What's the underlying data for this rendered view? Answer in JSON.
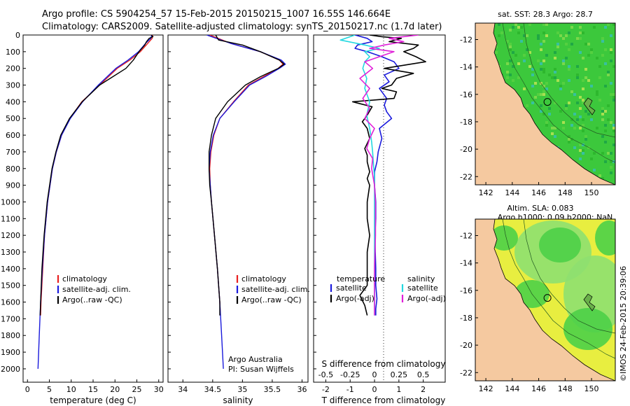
{
  "header": {
    "line1": "Argo profile: CS 5904254_57 15-Feb-2015 20150215_1007 16.55S 146.664E",
    "line2": "Climatology: CARS2009. Satellite-adjusted climatology: synTS_20150217.nc (1.7d later)"
  },
  "colors": {
    "climatology": "#e82020",
    "satellite": "#1a1adc",
    "argo": "#000000",
    "sal_satellite": "#22d8e0",
    "sal_argo": "#e020d8",
    "land": "#f5c9a0",
    "ocean_green": "#3cc83c"
  },
  "chart_data": [
    {
      "type": "line",
      "panel": "temperature",
      "xlabel": "temperature (deg C)",
      "ylabel": "",
      "xlim": [
        -1,
        31
      ],
      "ylim": [
        2080,
        0
      ],
      "xticks": [
        "0",
        "5",
        "10",
        "15",
        "20",
        "25",
        "30"
      ],
      "yticks": [
        "0",
        "100",
        "200",
        "300",
        "400",
        "500",
        "600",
        "700",
        "800",
        "900",
        "1000",
        "1100",
        "1200",
        "1300",
        "1400",
        "1500",
        "1600",
        "1700",
        "1800",
        "1900",
        "2000"
      ],
      "legend": [
        "climatology",
        "satellite-adj. clim.",
        "Argo(..raw -QC)"
      ],
      "series": [
        {
          "name": "climatology",
          "depth": [
            0,
            20,
            50,
            100,
            150,
            200,
            300,
            400,
            500,
            600,
            700,
            800,
            1000,
            1200,
            1400,
            1600,
            1680
          ],
          "values": [
            28.6,
            28.5,
            27.5,
            25.8,
            23.4,
            20.5,
            16.5,
            12.4,
            9.7,
            7.8,
            6.6,
            5.7,
            4.6,
            3.9,
            3.5,
            3.1,
            3.0
          ]
        },
        {
          "name": "satellite-adj. clim.",
          "depth": [
            0,
            20,
            50,
            100,
            150,
            200,
            300,
            400,
            500,
            600,
            700,
            800,
            1000,
            1200,
            1400,
            1600,
            1800,
            2000
          ],
          "values": [
            28.4,
            28.2,
            27.0,
            25.4,
            23.0,
            20.2,
            16.2,
            12.6,
            9.8,
            7.8,
            6.6,
            5.7,
            4.6,
            3.9,
            3.4,
            3.0,
            2.7,
            2.4
          ]
        },
        {
          "name": "Argo(..raw -QC)",
          "depth": [
            0,
            10,
            20,
            40,
            60,
            100,
            150,
            200,
            250,
            300,
            400,
            500,
            600,
            700,
            800,
            1000,
            1200,
            1400,
            1600,
            1680
          ],
          "values": [
            28.3,
            28.7,
            27.8,
            27.2,
            26.8,
            25.5,
            24.2,
            22.5,
            19.5,
            16.5,
            12.5,
            9.6,
            7.6,
            6.5,
            5.6,
            4.5,
            3.8,
            3.3,
            3.0,
            2.9
          ]
        }
      ]
    },
    {
      "type": "line",
      "panel": "salinity",
      "xlabel": "salinity",
      "xlim": [
        33.75,
        36.1
      ],
      "ylim": [
        2080,
        0
      ],
      "xticks": [
        "34",
        "34.5",
        "35",
        "35.5",
        "36"
      ],
      "legend": [
        "climatology",
        "satellite-adj. clim.",
        "Argo(..raw -QC)"
      ],
      "series": [
        {
          "name": "climatology",
          "depth": [
            0,
            50,
            100,
            150,
            175,
            200,
            250,
            300,
            400,
            500,
            600,
            700,
            800,
            900,
            1000,
            1200,
            1400,
            1600,
            1680
          ],
          "values": [
            34.45,
            34.8,
            35.3,
            35.62,
            35.68,
            35.6,
            35.35,
            35.1,
            34.85,
            34.62,
            34.52,
            34.47,
            34.45,
            34.46,
            34.48,
            34.53,
            34.58,
            34.62,
            34.63
          ]
        },
        {
          "name": "satellite-adj. clim.",
          "depth": [
            0,
            50,
            100,
            150,
            175,
            200,
            250,
            300,
            400,
            500,
            600,
            700,
            800,
            900,
            1000,
            1200,
            1400,
            1600,
            1800,
            2000
          ],
          "values": [
            34.4,
            34.8,
            35.3,
            35.65,
            35.72,
            35.62,
            35.38,
            35.12,
            34.86,
            34.62,
            34.51,
            34.46,
            34.44,
            34.46,
            34.48,
            34.53,
            34.58,
            34.62,
            34.65,
            34.68
          ]
        },
        {
          "name": "Argo(..raw -QC)",
          "depth": [
            0,
            30,
            60,
            100,
            150,
            175,
            200,
            250,
            300,
            400,
            500,
            600,
            700,
            800,
            900,
            1000,
            1200,
            1400,
            1600,
            1680
          ],
          "values": [
            34.55,
            34.6,
            35.0,
            35.3,
            35.62,
            35.7,
            35.6,
            35.3,
            35.05,
            34.75,
            34.55,
            34.48,
            34.44,
            34.44,
            34.45,
            34.48,
            34.53,
            34.58,
            34.62,
            34.62
          ]
        }
      ],
      "annotation": [
        "Argo Australia",
        "PI: Susan Wijffels"
      ]
    },
    {
      "type": "line",
      "panel": "difference from climatology",
      "xlabel": "T difference from climatology",
      "xlabel_top": "S difference from climatology",
      "xlim_T": [
        -2.5,
        2.9
      ],
      "xticks_T": [
        "-2",
        "-1",
        "0",
        "1",
        "2"
      ],
      "xticks_S": [
        "-0.5",
        "-0.25",
        "0",
        "0.25",
        "0.5"
      ],
      "ylim": [
        2080,
        0
      ],
      "legend_temperature_title": "temperature",
      "legend_salinity_title": "salinity",
      "legend": [
        "satellite",
        "Argo(-adj)",
        "satellite",
        "Argo(-adj)"
      ],
      "series": [
        {
          "name": "T satellite",
          "depth": [
            0,
            20,
            40,
            60,
            80,
            100,
            130,
            160,
            200,
            240,
            280,
            320,
            380,
            420,
            460,
            500,
            560,
            620,
            700,
            760,
            820,
            900,
            1000,
            1100,
            1200,
            1300,
            1400,
            1500,
            1580,
            1640,
            1680
          ],
          "values": [
            -0.8,
            -0.3,
            -0.1,
            -0.7,
            -0.8,
            -0.3,
            0.3,
            0.8,
            1.0,
            0.4,
            0.6,
            0.2,
            0.5,
            0.4,
            0.5,
            0.7,
            0.2,
            0.3,
            0.15,
            0.1,
            0.0,
            0.0,
            0.05,
            0.05,
            0.02,
            0.03,
            0.05,
            0.05,
            0.1,
            0.05,
            0.05
          ]
        },
        {
          "name": "T Argo(-adj)",
          "depth": [
            0,
            10,
            20,
            40,
            60,
            80,
            100,
            130,
            160,
            200,
            230,
            260,
            300,
            320,
            340,
            380,
            400,
            430,
            480,
            520,
            560,
            620,
            680,
            720,
            760,
            820,
            860,
            900,
            1000,
            1100,
            1200,
            1300,
            1400,
            1500,
            1560,
            1620,
            1680
          ],
          "values": [
            -0.2,
            0.3,
            1.1,
            0.6,
            1.8,
            1.6,
            1.2,
            1.7,
            2.1,
            0.4,
            1.6,
            0.9,
            0.7,
            0.3,
            0.9,
            0.8,
            -0.9,
            -0.1,
            -0.3,
            -0.5,
            -0.3,
            -0.2,
            -0.4,
            -0.3,
            -0.3,
            -0.2,
            -0.3,
            -0.2,
            -0.3,
            -0.3,
            -0.2,
            -0.3,
            -0.3,
            -0.3,
            -0.6,
            -0.4,
            -0.3
          ]
        },
        {
          "name": "S satellite",
          "depth": [
            0,
            30,
            60,
            80,
            100,
            130,
            160,
            200,
            260,
            320,
            400,
            480,
            560,
            640,
            700,
            780,
            850,
            1000,
            1200,
            1400,
            1600,
            1680
          ],
          "values": [
            -0.2,
            -0.35,
            -0.1,
            0.05,
            -0.1,
            -0.05,
            -0.1,
            -0.12,
            -0.08,
            -0.1,
            -0.05,
            -0.08,
            -0.05,
            -0.03,
            -0.02,
            -0.01,
            0.0,
            0.0,
            0.0,
            0.0,
            0.0,
            0.0
          ]
        },
        {
          "name": "S Argo(-adj)",
          "depth": [
            0,
            20,
            40,
            60,
            80,
            100,
            130,
            160,
            200,
            260,
            320,
            380,
            440,
            500,
            560,
            620,
            680,
            740,
            800,
            900,
            1000,
            1200,
            1400,
            1600,
            1680
          ],
          "values": [
            0.45,
            0.15,
            0.3,
            0.1,
            -0.05,
            0.2,
            0.05,
            -0.1,
            -0.02,
            -0.15,
            -0.05,
            -0.12,
            -0.05,
            -0.1,
            0.0,
            -0.05,
            -0.08,
            -0.02,
            -0.03,
            0.0,
            0.01,
            0.01,
            0.0,
            0.0,
            0.0
          ]
        }
      ]
    },
    {
      "type": "heatmap",
      "panel": "SST map",
      "title": "sat. SST: 28.3 Argo: 28.7",
      "xticks": [
        "142",
        "144",
        "146",
        "148",
        "150"
      ],
      "yticks": [
        "-12",
        "-14",
        "-16",
        "-18",
        "-20",
        "-22"
      ],
      "xlim": [
        141.2,
        151.8
      ],
      "ylim": [
        -22.6,
        -10.8
      ],
      "marker": {
        "lon": 146.664,
        "lat": -16.55
      }
    },
    {
      "type": "heatmap",
      "panel": "SLA map",
      "title_line1": "Altim. SLA: 0.083",
      "title_line2": "Argo h1000: 0.09 h2000: NaN",
      "xticks": [
        "142",
        "144",
        "146",
        "148",
        "150"
      ],
      "yticks": [
        "-12",
        "-14",
        "-16",
        "-18",
        "-20",
        "-22"
      ],
      "xlim": [
        141.2,
        151.8
      ],
      "ylim": [
        -22.6,
        -10.8
      ],
      "marker": {
        "lon": 146.664,
        "lat": -16.55
      }
    }
  ],
  "credit": "©IMOS 24-Feb-2015 20:39:06"
}
